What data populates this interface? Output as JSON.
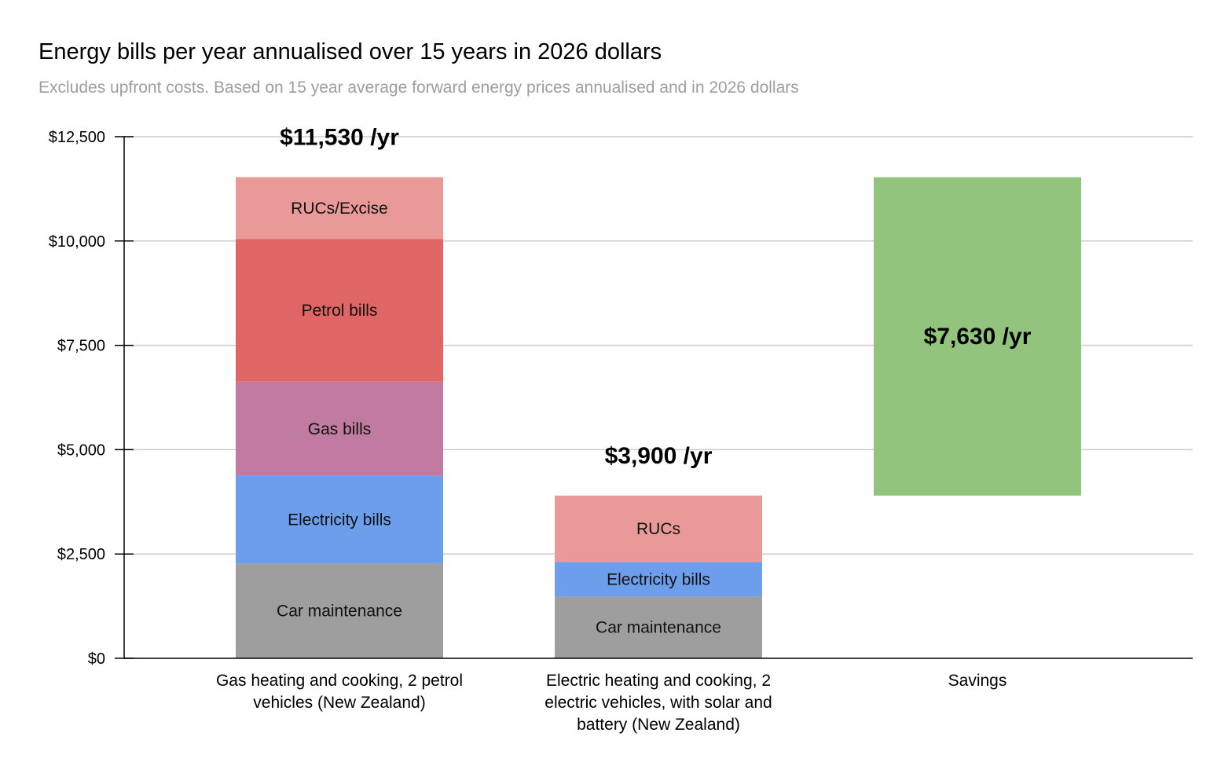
{
  "chart_data": {
    "type": "bar",
    "stacked": true,
    "title": "Energy bills per year annualised over 15 years in 2026 dollars",
    "subtitle": "Excludes upfront costs. Based on 15 year average forward energy prices annualised and in 2026 dollars",
    "ylim": [
      0,
      12500
    ],
    "y_ticks": [
      {
        "value": 0,
        "label": "$0"
      },
      {
        "value": 2500,
        "label": "$2,500"
      },
      {
        "value": 5000,
        "label": "$5,000"
      },
      {
        "value": 7500,
        "label": "$7,500"
      },
      {
        "value": 10000,
        "label": "$10,000"
      },
      {
        "value": 12500,
        "label": "$12,500"
      }
    ],
    "grid": true,
    "legend": "none",
    "bars": [
      {
        "category_lines": [
          "Gas heating and cooking, 2 petrol",
          "vehicles (New Zealand)"
        ],
        "total_label": "$11,530 /yr",
        "segments": [
          {
            "name": "Car maintenance",
            "value": 2270,
            "color": "#9e9e9e"
          },
          {
            "name": "Electricity bills",
            "value": 2100,
            "color": "#6d9eeb"
          },
          {
            "name": "Gas bills",
            "value": 2260,
            "color": "#c27ba0"
          },
          {
            "name": "Petrol bills",
            "value": 3420,
            "color": "#e06666"
          },
          {
            "name": "RUCs/Excise",
            "value": 1480,
            "color": "#ea9999"
          }
        ]
      },
      {
        "category_lines": [
          "Electric heating and cooking, 2",
          "electric vehicles, with solar and",
          "battery (New Zealand)"
        ],
        "total_label": "$3,900 /yr",
        "segments": [
          {
            "name": "Car maintenance",
            "value": 1480,
            "color": "#9e9e9e"
          },
          {
            "name": "Electricity bills",
            "value": 830,
            "color": "#6d9eeb"
          },
          {
            "name": "RUCs",
            "value": 1590,
            "color": "#ea9999"
          }
        ]
      },
      {
        "category_lines": [
          "Savings"
        ],
        "floating": true,
        "base": 3900,
        "segments": [
          {
            "name": "$7,630 /yr",
            "value": 7630,
            "color": "#93c47d",
            "bold": true
          }
        ]
      }
    ]
  }
}
